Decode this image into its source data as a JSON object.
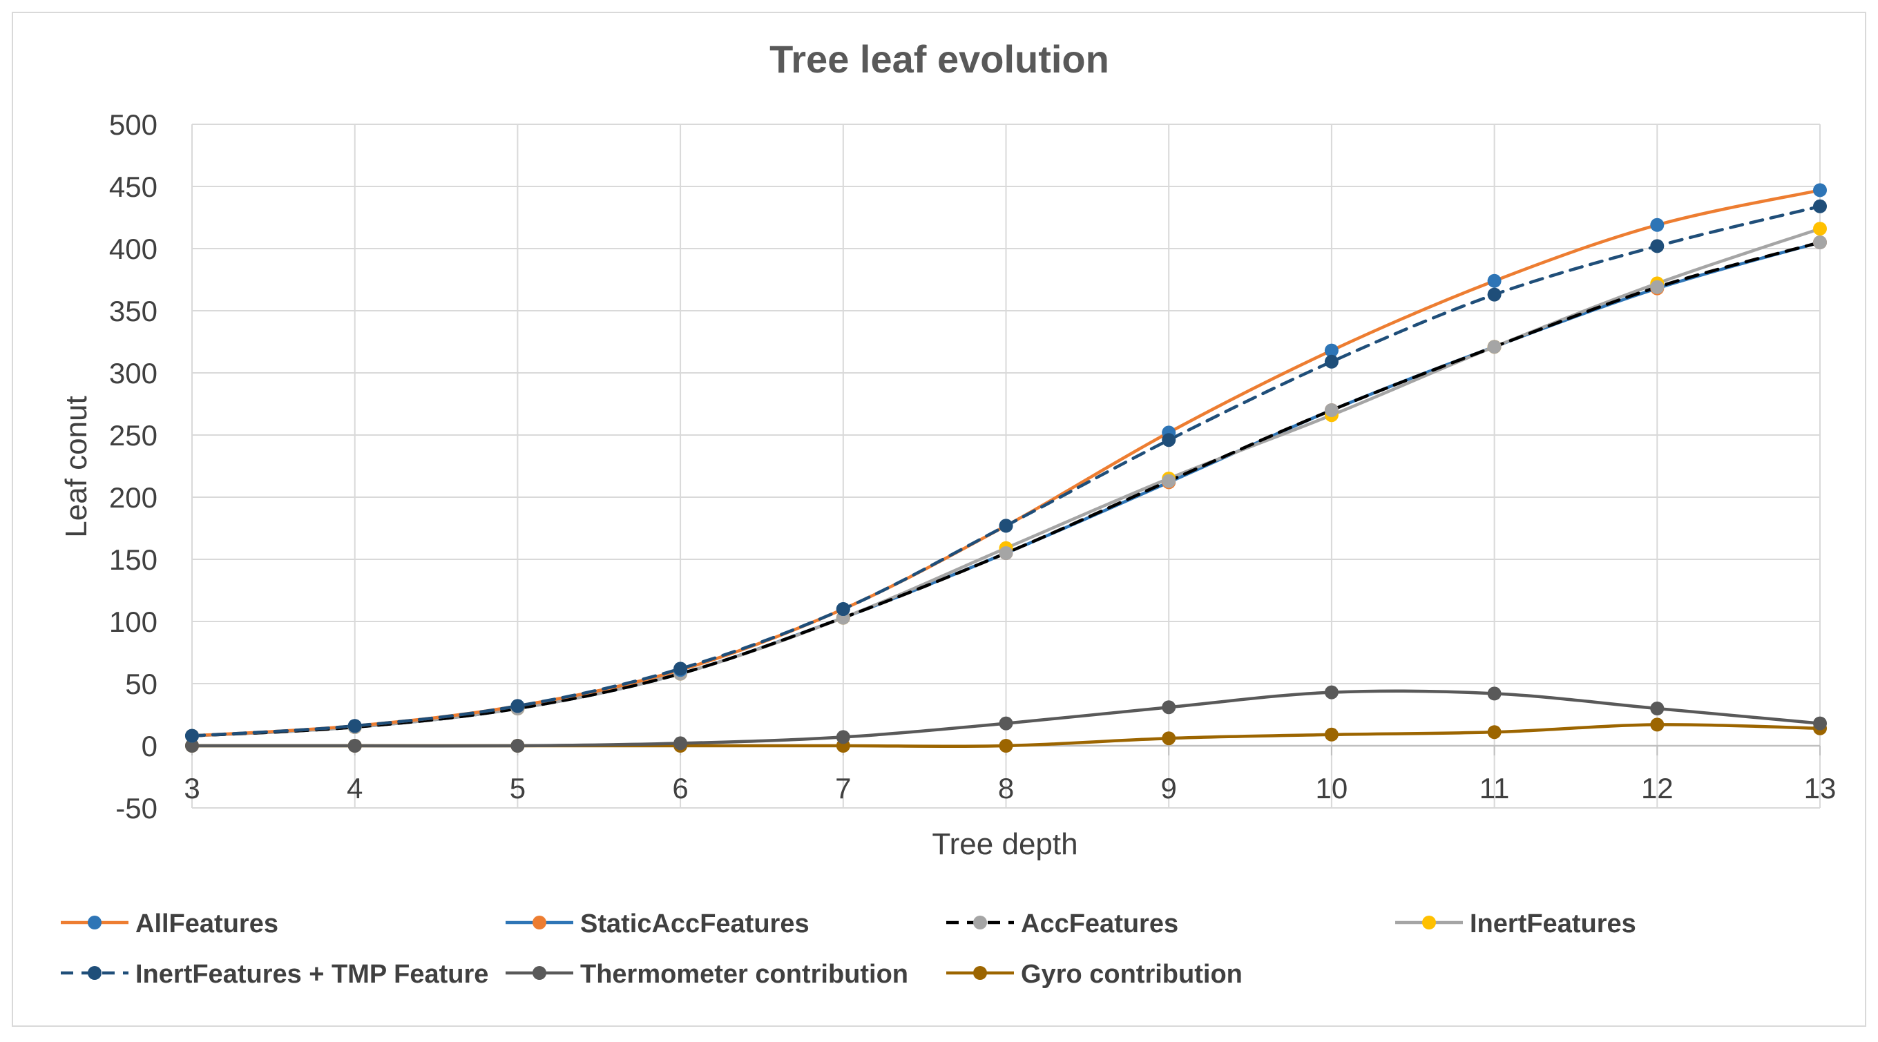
{
  "chart_data": {
    "type": "line",
    "title": "Tree leaf evolution",
    "xlabel": "Tree depth",
    "ylabel": "Leaf conut",
    "x": [
      3,
      4,
      5,
      6,
      7,
      8,
      9,
      10,
      11,
      12,
      13
    ],
    "xlim": [
      3,
      13
    ],
    "ylim": [
      -50,
      500
    ],
    "yticks": [
      -50,
      0,
      50,
      100,
      150,
      200,
      250,
      300,
      350,
      400,
      450,
      500
    ],
    "grid": true,
    "legend_position": "bottom",
    "series": [
      {
        "name": "AllFeatures",
        "line_color": "#ed7d31",
        "marker_color": "#2e75b6",
        "dashed": false,
        "values": [
          8,
          16,
          32,
          61,
          110,
          177,
          252,
          318,
          374,
          419,
          447
        ]
      },
      {
        "name": "StaticAccFeatures",
        "line_color": "#2e75b6",
        "marker_color": "#ed7d31",
        "dashed": false,
        "values": [
          8,
          15,
          30,
          58,
          103,
          155,
          212,
          270,
          321,
          368,
          405
        ]
      },
      {
        "name": "AccFeatures",
        "line_color": "#000000",
        "marker_color": "#a5a5a5",
        "dashed": true,
        "values": [
          8,
          15,
          30,
          58,
          103,
          155,
          213,
          270,
          321,
          369,
          405
        ]
      },
      {
        "name": "InertFeatures",
        "line_color": "#a5a5a5",
        "marker_color": "#ffc000",
        "dashed": false,
        "values": [
          8,
          15,
          30,
          58,
          103,
          159,
          215,
          266,
          321,
          372,
          416
        ]
      },
      {
        "name": "InertFeatures + TMP Feature",
        "line_color": "#1f4e79",
        "marker_color": "#1f4e79",
        "dashed": true,
        "values": [
          8,
          16,
          32,
          62,
          110,
          177,
          246,
          309,
          363,
          402,
          434
        ]
      },
      {
        "name": "Thermometer contribution",
        "line_color": "#595959",
        "marker_color": "#595959",
        "dashed": false,
        "values": [
          0,
          0,
          0,
          2,
          7,
          18,
          31,
          43,
          42,
          30,
          18
        ]
      },
      {
        "name": "Gyro contribution",
        "line_color": "#9c6500",
        "marker_color": "#9c6500",
        "dashed": false,
        "values": [
          0,
          0,
          0,
          0,
          0,
          0,
          6,
          9,
          11,
          17,
          14
        ]
      }
    ]
  }
}
